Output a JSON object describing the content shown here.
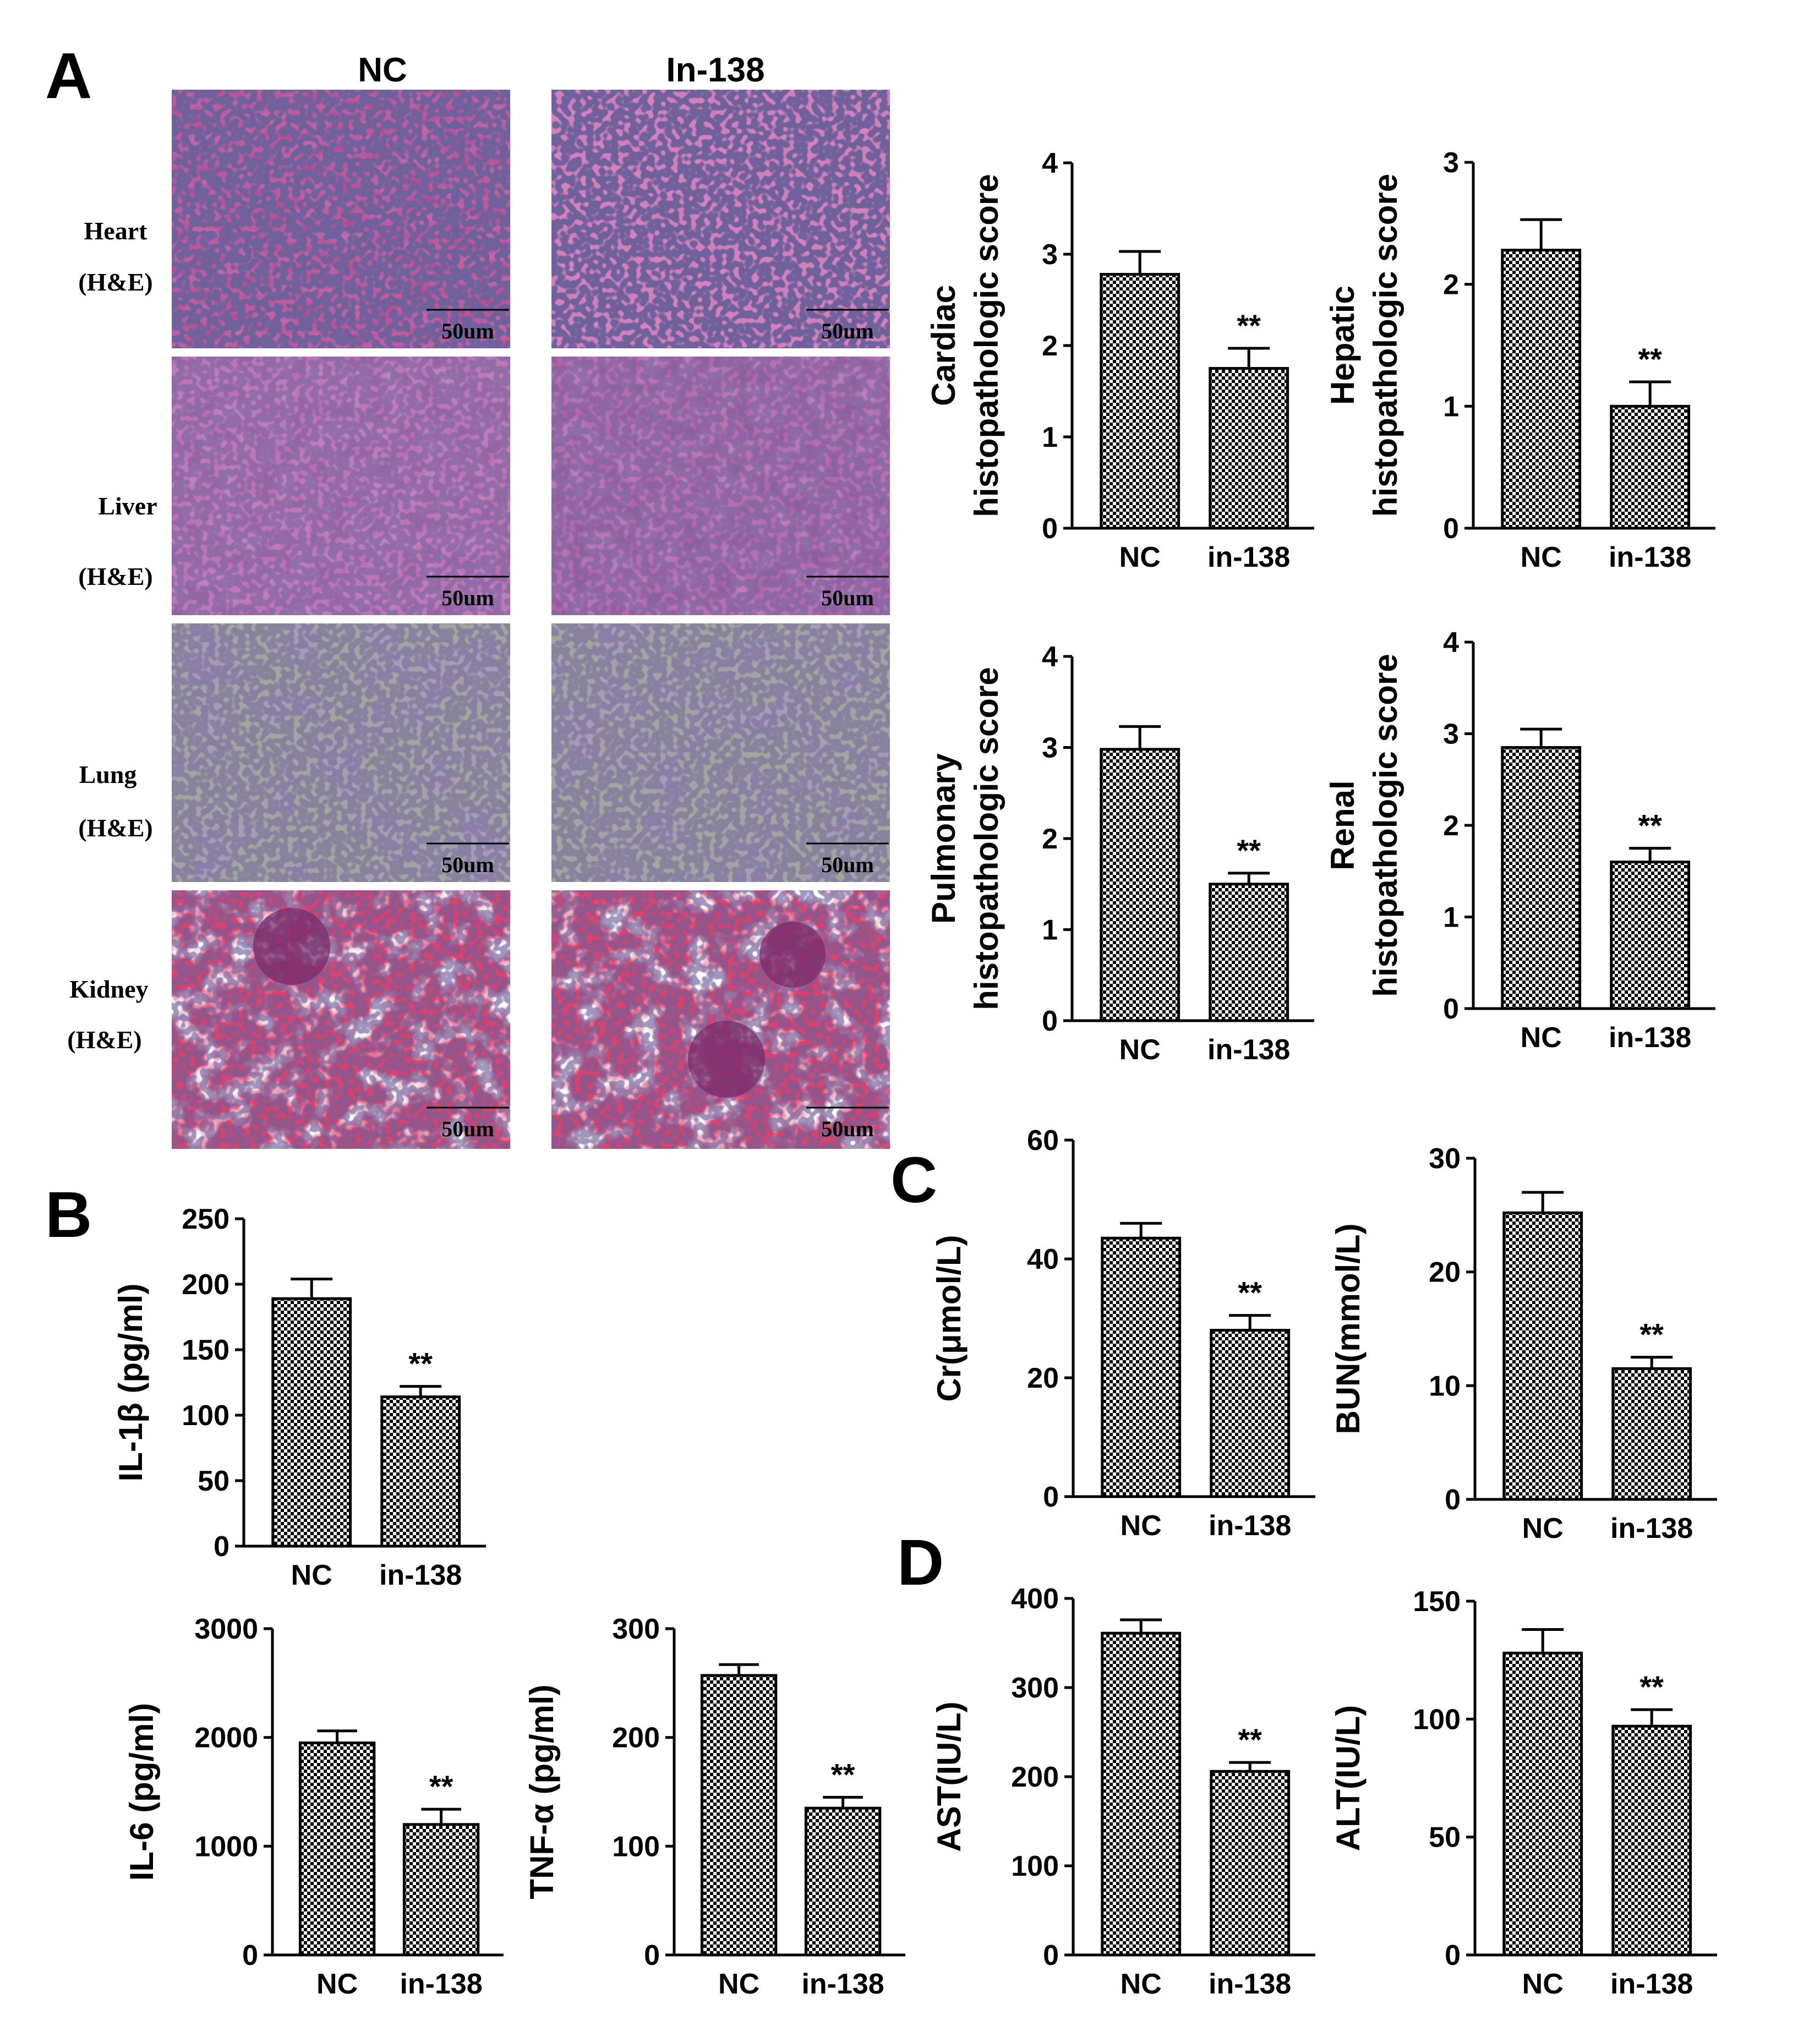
{
  "panels": {
    "A": "A",
    "B": "B",
    "C": "C",
    "D": "D"
  },
  "histology": {
    "columns": [
      "NC",
      "In-138"
    ],
    "rows": [
      {
        "name": "Heart",
        "stain": "(H&E)"
      },
      {
        "name": "Liver",
        "stain": "(H&E)"
      },
      {
        "name": "Lung",
        "stain": "(H&E)"
      },
      {
        "name": "Kidney",
        "stain": "(H&E)"
      }
    ],
    "scale_bar": "50um",
    "tissue_colors": {
      "heart_nc": "#b6488f",
      "heart_in": "#d17ab9",
      "liver_nc": "#b568a8",
      "liver_in": "#a85ca0",
      "lung": "#9fa19c",
      "lung_cells": "#6a5d7a",
      "kidney": "#d83f76",
      "nuclei": "#2a2055"
    }
  },
  "significance_mark": "**",
  "bar_fill": "checkerboard black/white",
  "chart_data": [
    {
      "type": "bar",
      "panel": "A",
      "ylabel": [
        "Cardiac",
        "histopathologic  score"
      ],
      "categories": [
        "NC",
        "in-138"
      ],
      "values": [
        2.78,
        1.75
      ],
      "errors": [
        0.25,
        0.22
      ],
      "ylim": [
        0,
        4
      ],
      "yticks": [
        0,
        1,
        2,
        3,
        4
      ],
      "significant": [
        false,
        true
      ]
    },
    {
      "type": "bar",
      "panel": "A",
      "ylabel": [
        "Hepatic",
        "histopathologic  score"
      ],
      "categories": [
        "NC",
        "in-138"
      ],
      "values": [
        2.28,
        1.0
      ],
      "errors": [
        0.25,
        0.2
      ],
      "ylim": [
        0,
        3
      ],
      "yticks": [
        0,
        1,
        2,
        3
      ],
      "significant": [
        false,
        true
      ]
    },
    {
      "type": "bar",
      "panel": "A",
      "ylabel": [
        "Pulmonary",
        "histopathologic  score"
      ],
      "categories": [
        "NC",
        "in-138"
      ],
      "values": [
        2.98,
        1.5
      ],
      "errors": [
        0.25,
        0.12
      ],
      "ylim": [
        0,
        4
      ],
      "yticks": [
        0,
        1,
        2,
        3,
        4
      ],
      "significant": [
        false,
        true
      ]
    },
    {
      "type": "bar",
      "panel": "A",
      "ylabel": [
        "Renal",
        "histopathologic  score"
      ],
      "categories": [
        "NC",
        "in-138"
      ],
      "values": [
        2.85,
        1.6
      ],
      "errors": [
        0.2,
        0.15
      ],
      "ylim": [
        0,
        4
      ],
      "yticks": [
        0,
        1,
        2,
        3,
        4
      ],
      "significant": [
        false,
        true
      ]
    },
    {
      "type": "bar",
      "panel": "B",
      "ylabel": [
        "IL-1β (pg/ml)"
      ],
      "categories": [
        "NC",
        "in-138"
      ],
      "values": [
        189,
        114
      ],
      "errors": [
        15,
        8
      ],
      "ylim": [
        0,
        250
      ],
      "yticks": [
        0,
        50,
        100,
        150,
        200,
        250
      ],
      "significant": [
        false,
        true
      ]
    },
    {
      "type": "bar",
      "panel": "B",
      "ylabel": [
        "IL-6 (pg/ml)"
      ],
      "categories": [
        "NC",
        "in-138"
      ],
      "values": [
        1950,
        1200
      ],
      "errors": [
        110,
        140
      ],
      "ylim": [
        0,
        3000
      ],
      "yticks": [
        0,
        1000,
        2000,
        3000
      ],
      "significant": [
        false,
        true
      ]
    },
    {
      "type": "bar",
      "panel": "B",
      "ylabel": [
        "TNF-α (pg/ml)"
      ],
      "categories": [
        "NC",
        "in-138"
      ],
      "values": [
        257,
        135
      ],
      "errors": [
        10,
        10
      ],
      "ylim": [
        0,
        300
      ],
      "yticks": [
        0,
        100,
        200,
        300
      ],
      "significant": [
        false,
        true
      ]
    },
    {
      "type": "bar",
      "panel": "C",
      "ylabel": [
        "Cr(μmol/L)"
      ],
      "categories": [
        "NC",
        "in-138"
      ],
      "values": [
        43.5,
        28
      ],
      "errors": [
        2.5,
        2.5
      ],
      "ylim": [
        0,
        60
      ],
      "yticks": [
        0,
        20,
        40,
        60
      ],
      "significant": [
        false,
        true
      ]
    },
    {
      "type": "bar",
      "panel": "C",
      "ylabel": [
        "BUN(mmol/L)"
      ],
      "categories": [
        "NC",
        "in-138"
      ],
      "values": [
        25.2,
        11.5
      ],
      "errors": [
        1.8,
        1.0
      ],
      "ylim": [
        0,
        30
      ],
      "yticks": [
        0,
        10,
        20,
        30
      ],
      "significant": [
        false,
        true
      ]
    },
    {
      "type": "bar",
      "panel": "D",
      "ylabel": [
        "AST(IU/L)"
      ],
      "categories": [
        "NC",
        "in-138"
      ],
      "values": [
        361,
        206
      ],
      "errors": [
        15,
        10
      ],
      "ylim": [
        0,
        400
      ],
      "yticks": [
        0,
        100,
        200,
        300,
        400
      ],
      "significant": [
        false,
        true
      ]
    },
    {
      "type": "bar",
      "panel": "D",
      "ylabel": [
        "ALT(IU/L)"
      ],
      "categories": [
        "NC",
        "in-138"
      ],
      "values": [
        128,
        97
      ],
      "errors": [
        10,
        7
      ],
      "ylim": [
        0,
        150
      ],
      "yticks": [
        0,
        50,
        100,
        150
      ],
      "significant": [
        false,
        true
      ]
    }
  ]
}
